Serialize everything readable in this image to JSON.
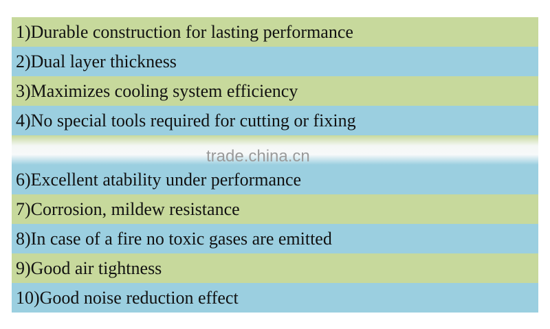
{
  "list": {
    "items": [
      "1)Durable construction for lasting performance",
      "2)Dual layer thickness",
      "3)Maximizes cooling system efficiency",
      "4)No special tools required for cutting or fixing",
      "6)Excellent atability under performance",
      "7)Corrosion, mildew resistance",
      "8)In case of a fire no toxic gases are emitted",
      "9)Good air tightness",
      "10)Good noise reduction effect"
    ]
  },
  "watermark": "trade.china.cn"
}
